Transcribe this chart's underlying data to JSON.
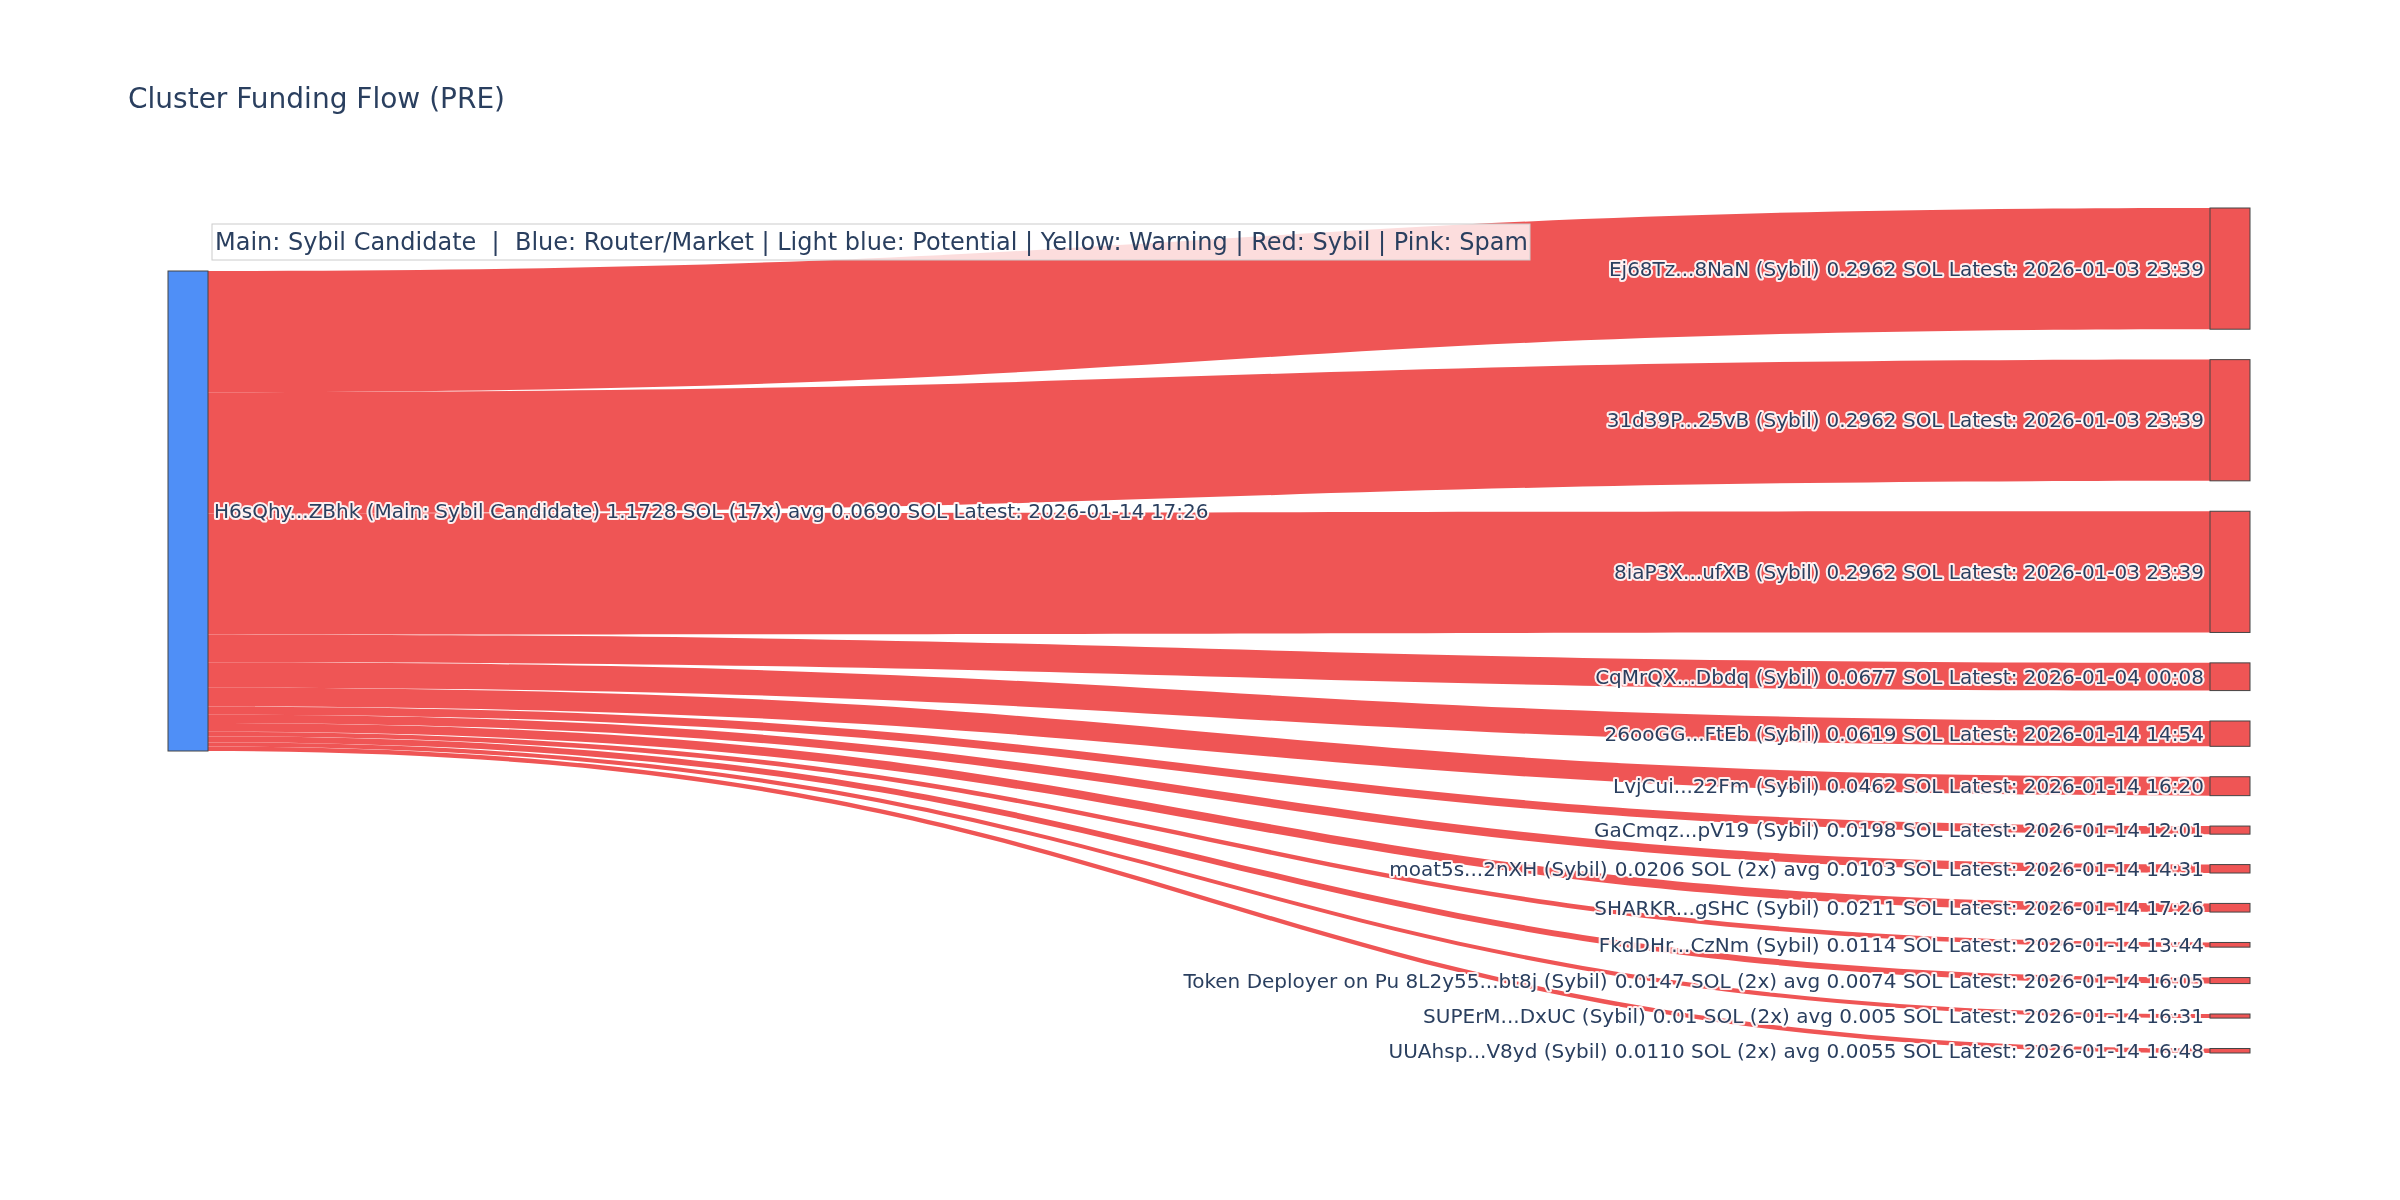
{
  "chart_data": {
    "type": "other",
    "title": "Cluster Funding Flow (PRE)",
    "annotations": [
      "Main: Sybil Candidate  |  Blue: Router/Market | Light blue: Potential | Yellow: Warning | Red: Sybil | Pink: Spam",
      "H6sQhy...ZBhk (Main: Sybil Candidate) 1.1728 SOL (17x) avg 0.0690 SOL Latest: 2026-01-14 17:26"
    ],
    "color": "#4f8ff7",
    "categories": [
      "Ej68Tz...8NaN (Sybil)",
      "31d39P...25vB (Sybil)",
      "8iaP3X...ufXB (Sybil)",
      "CqMrQX...Dbdq (Sybil)",
      "26ooGG...FtEb (Sybil)",
      "LvjCui...22Fm (Sybil)",
      "GaCmqz...pV19 (Sybil)",
      "moat5s...2nXH (Sybil)",
      "SHARKR...gSHC (Sybil)",
      "FkdDHr...CzNm (Sybil)",
      "Token Deployer on Pu 8L2y55...bt8j (Sybil)",
      "SUPErM...DxUC (Sybil)",
      "UUAhsp...V8yd (Sybil)"
    ],
    "values": [
      0.2962,
      0.2962,
      0.2962,
      0.0677,
      0.0619,
      0.0462,
      0.0198,
      0.0206,
      0.0211,
      0.0114,
      0.0147,
      0.01,
      0.011
    ],
    "value_labels": [
      "0.2962 SOL Latest: 2026-01-03 23:39",
      "0.2962 SOL Latest: 2026-01-03 23:39",
      "0.2962 SOL Latest: 2026-01-03 23:39",
      "0.0677 SOL Latest: 2026-01-04 00:08",
      "0.0619 SOL Latest: 2026-01-14 14:54",
      "0.0462 SOL Latest: 2026-01-14 16:20",
      "0.0198 SOL Latest: 2026-01-14 12:01",
      "0.0206 SOL (2x) avg 0.0103 SOL Latest: 2026-01-14 14:31",
      "0.0211 SOL Latest: 2026-01-14 17:26",
      "0.0114 SOL Latest: 2026-01-14 13:44",
      "0.0147 SOL (2x) avg 0.0074 SOL Latest: 2026-01-14 16:05",
      "0.01 SOL (2x) avg 0.005 SOL Latest: 2026-01-14 16:31",
      "0.0110 SOL (2x) avg 0.0055 SOL Latest: 2026-01-14 16:48"
    ],
    "colors": [
      "#ef5555",
      "#ef5555",
      "#ef5555",
      "#ef5555",
      "#ef5555",
      "#ef5555",
      "#ef5555",
      "#ef5555",
      "#ef5555",
      "#ef5555",
      "#ef5555",
      "#ef5555",
      "#ef5555"
    ]
  }
}
